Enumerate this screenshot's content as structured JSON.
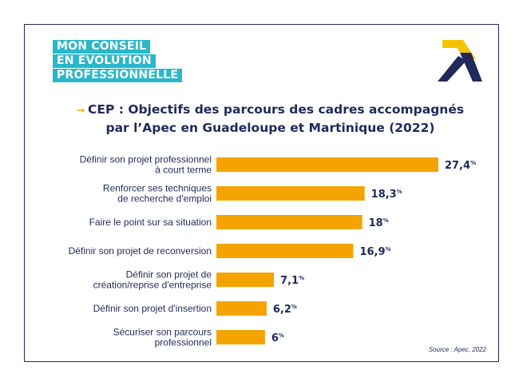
{
  "badge": {
    "lines": [
      "MON CONSEIL",
      "EN ÉVOLUTION",
      "PROFESSIONNELLE"
    ]
  },
  "colors": {
    "navy": "#1f2a5a",
    "orange": "#f4a300",
    "teal": "#2ab7ca",
    "logo_yellow": "#f5c400"
  },
  "icons": [
    "arrow-bullet-icon",
    "apec-logo-icon"
  ],
  "title": {
    "bullet": "→",
    "line1": "CEP : Objectifs des parcours des cadres accompagnés",
    "line2": "par l’Apec en Guadeloupe et Martinique (2022)"
  },
  "source": "Source : Apec, 2022",
  "chart_data": {
    "type": "bar",
    "orientation": "horizontal",
    "categories": [
      [
        "Définir son projet professionnel",
        "à court terme"
      ],
      [
        "Renforcer ses techniques",
        "de recherche d'emploi"
      ],
      [
        "Faire le point sur sa situation"
      ],
      [
        "Définir son projet de reconversion"
      ],
      [
        "Définir son projet de",
        "création/reprise d'entreprise"
      ],
      [
        "Définir son projet d'insertion"
      ],
      [
        "Sécuriser son parcours",
        "professionnel"
      ]
    ],
    "values": [
      27.4,
      18.3,
      18,
      16.9,
      7.1,
      6.2,
      6
    ],
    "value_labels": [
      "27,4",
      "18,3",
      "18",
      "16,9",
      "7,1",
      "6,2",
      "6"
    ],
    "unit": "%",
    "bar_color": "#f4a300",
    "title": "CEP : Objectifs des parcours des cadres accompagnés par l’Apec en Guadeloupe et Martinique (2022)",
    "xlabel": "",
    "ylabel": "",
    "xlim": [
      0,
      27.4
    ],
    "grid": false,
    "legend": "none"
  }
}
